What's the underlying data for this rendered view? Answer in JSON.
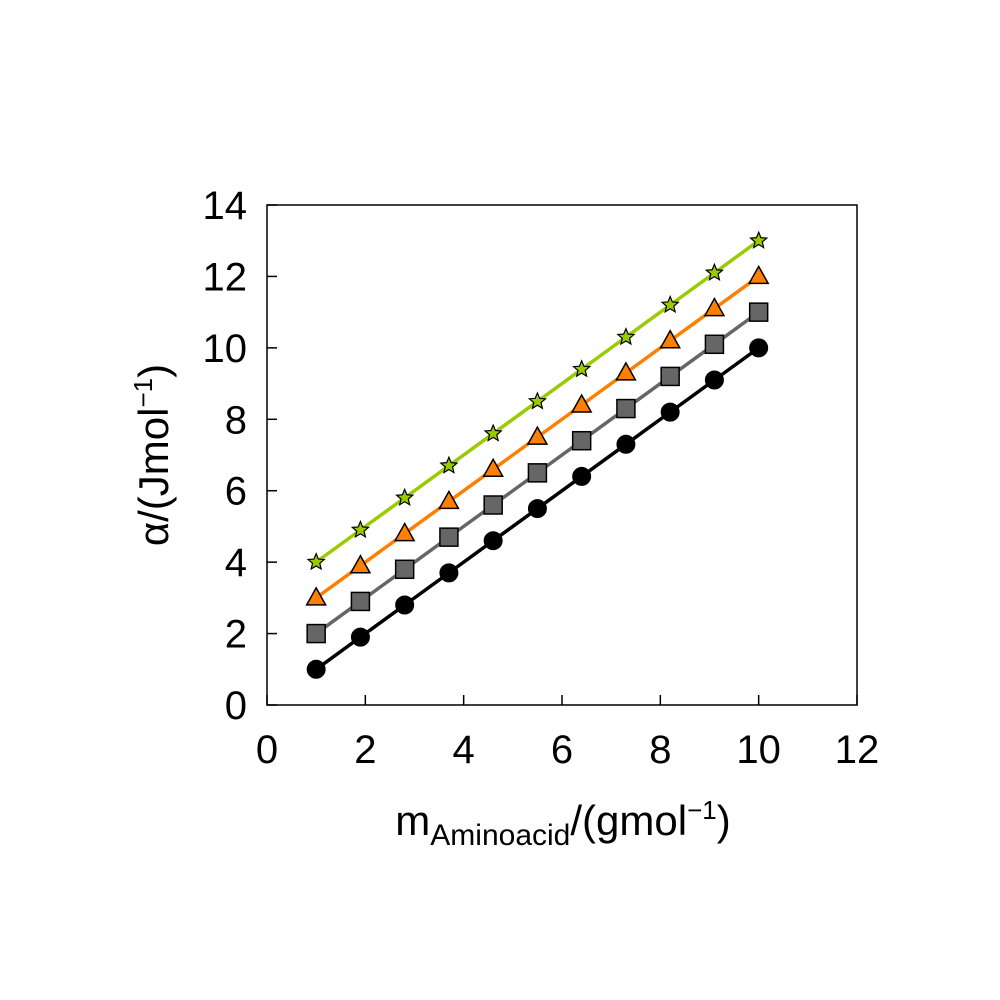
{
  "chart_data": {
    "type": "line",
    "x": [
      1,
      1.9,
      2.8,
      3.7,
      4.6,
      5.5,
      6.4,
      7.3,
      8.2,
      9.1,
      10
    ],
    "xlabel": {
      "main": "m",
      "sub": "Aminoacid",
      "rest": "/(gmol",
      "sup": "−1",
      "end": ")"
    },
    "ylabel": {
      "main": "α/(Jmol",
      "sup": "−1",
      "end": ")"
    },
    "xlim": [
      0,
      12
    ],
    "ylim": [
      0,
      14
    ],
    "xticks": [
      0,
      2,
      4,
      6,
      8,
      10,
      12
    ],
    "yticks": [
      0,
      2,
      4,
      6,
      8,
      10,
      12,
      14
    ],
    "grid": false,
    "legend": "none",
    "series": [
      {
        "marker": "star",
        "color": "#99cc00",
        "values": [
          4,
          4.9,
          5.8,
          6.7,
          7.6,
          8.5,
          9.4,
          10.3,
          11.2,
          12.1,
          13
        ]
      },
      {
        "marker": "triangle",
        "color": "#ff8000",
        "values": [
          3,
          3.9,
          4.8,
          5.7,
          6.6,
          7.5,
          8.4,
          9.3,
          10.2,
          11.1,
          12
        ]
      },
      {
        "marker": "square",
        "color": "#666666",
        "values": [
          2,
          2.9,
          3.8,
          4.7,
          5.6,
          6.5,
          7.4,
          8.3,
          9.2,
          10.1,
          11
        ]
      },
      {
        "marker": "circle",
        "color": "#000000",
        "values": [
          1,
          1.9,
          2.8,
          3.7,
          4.6,
          5.5,
          6.4,
          7.3,
          8.2,
          9.1,
          10
        ]
      }
    ]
  }
}
